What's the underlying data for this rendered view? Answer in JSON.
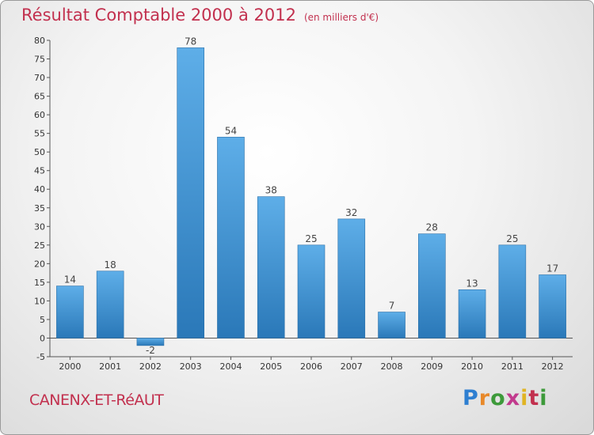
{
  "header": {
    "title": "Résultat Comptable 2000 à 2012",
    "subtitle": "(en milliers d'€)"
  },
  "footer": {
    "commune": "CANENX-ET-RéAUT",
    "logo": [
      "P",
      "r",
      "o",
      "x",
      "i",
      "t",
      "i"
    ]
  },
  "colors": {
    "bar_light": "#5eaee8",
    "bar_dark": "#2a78b8",
    "title": "#c2304e"
  },
  "chart_data": {
    "type": "bar",
    "categories": [
      "2000",
      "2001",
      "2002",
      "2003",
      "2004",
      "2005",
      "2006",
      "2007",
      "2008",
      "2009",
      "2010",
      "2011",
      "2012"
    ],
    "values": [
      14,
      18,
      -2,
      78,
      54,
      38,
      25,
      32,
      7,
      28,
      13,
      25,
      17
    ],
    "value_labels": [
      "14",
      "18",
      "-2",
      "78",
      "54",
      "38",
      "25",
      "32",
      "7",
      "28",
      "13",
      "25",
      "17"
    ],
    "title": "Résultat Comptable 2000 à 2012",
    "xlabel": "",
    "ylabel": "",
    "ylim": [
      -5,
      80
    ],
    "yticks": [
      -5,
      0,
      5,
      10,
      15,
      20,
      25,
      30,
      35,
      40,
      45,
      50,
      55,
      60,
      65,
      70,
      75,
      80
    ],
    "grid": false,
    "legend": "none"
  }
}
